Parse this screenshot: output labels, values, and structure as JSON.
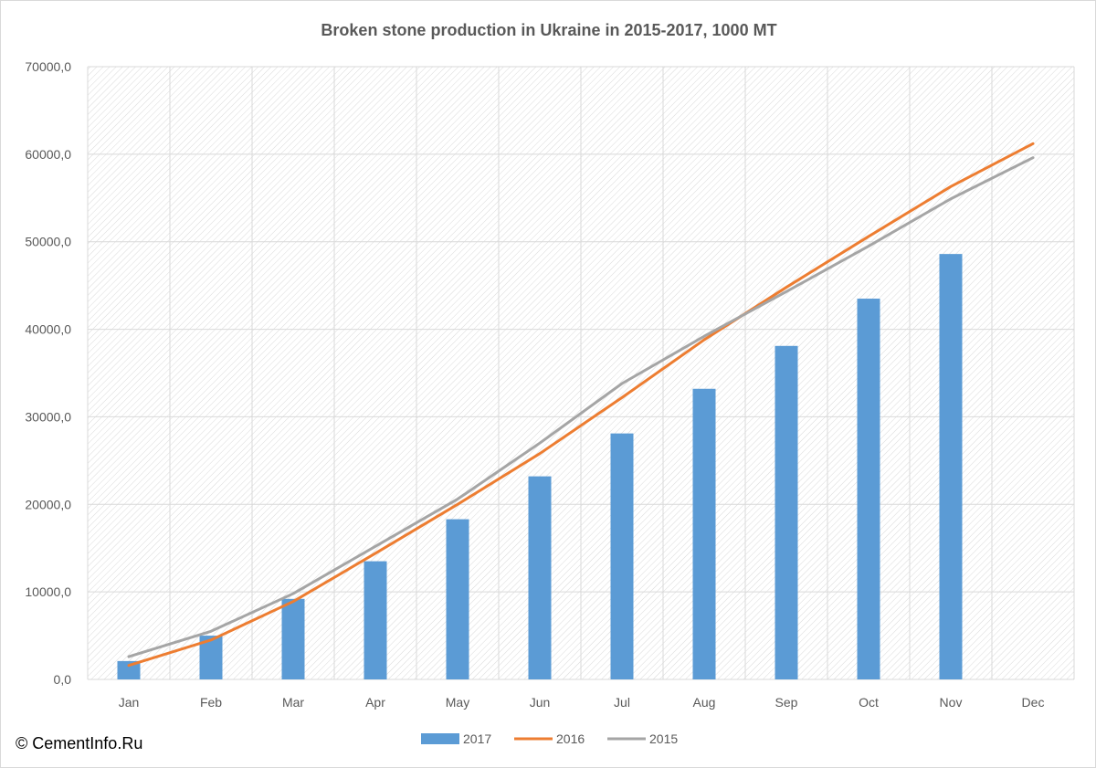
{
  "copyright": "© CementInfo.Ru",
  "chart_data": {
    "type": "bar",
    "title": "Broken stone production in Ukraine in 2015-2017, 1000 MT",
    "xlabel": "",
    "ylabel": "",
    "categories": [
      "Jan",
      "Feb",
      "Mar",
      "Apr",
      "May",
      "Jun",
      "Jul",
      "Aug",
      "Sep",
      "Oct",
      "Nov",
      "Dec"
    ],
    "ylim": [
      0,
      70000
    ],
    "yticks": [
      0,
      10000,
      20000,
      30000,
      40000,
      50000,
      60000,
      70000
    ],
    "ytick_labels": [
      "0,0",
      "10000,0",
      "20000,0",
      "30000,0",
      "40000,0",
      "50000,0",
      "60000,0",
      "70000,0"
    ],
    "grid": true,
    "legend_position": "bottom",
    "series": [
      {
        "name": "2017",
        "kind": "bar",
        "color": "#5b9bd5",
        "values": [
          2100,
          5000,
          9200,
          13500,
          18300,
          23200,
          28100,
          33200,
          38100,
          43500,
          48600,
          null
        ]
      },
      {
        "name": "2016",
        "kind": "line",
        "color": "#ed7d31",
        "values": [
          1600,
          4500,
          8900,
          14400,
          20000,
          25800,
          32200,
          38800,
          44800,
          50600,
          56300,
          61200
        ]
      },
      {
        "name": "2015",
        "kind": "line",
        "color": "#a5a5a5",
        "values": [
          2600,
          5500,
          9800,
          15200,
          20600,
          27000,
          33800,
          39200,
          44300,
          49500,
          54900,
          59600
        ]
      }
    ]
  }
}
